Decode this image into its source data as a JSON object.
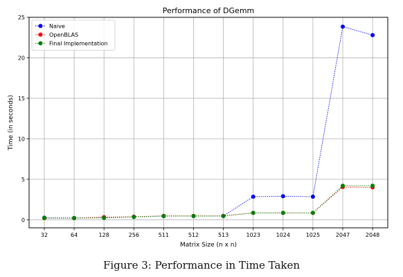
{
  "chart_data": {
    "type": "line",
    "title": "Performance of DGemm",
    "xlabel": "Matrix Size (n x n)",
    "ylabel": "Time (in seconds)",
    "categories": [
      "32",
      "64",
      "128",
      "256",
      "511",
      "512",
      "513",
      "1023",
      "1024",
      "1025",
      "2047",
      "2048"
    ],
    "ylim": [
      -1,
      25
    ],
    "yticks": [
      0,
      5,
      10,
      15,
      20,
      25
    ],
    "grid": true,
    "legend_position": "top-left",
    "series": [
      {
        "name": "Naive",
        "color": "#0000ff",
        "values": [
          0.25,
          0.22,
          0.3,
          0.35,
          0.45,
          0.45,
          0.45,
          2.85,
          2.9,
          2.85,
          23.85,
          22.8
        ]
      },
      {
        "name": "OpenBLAS",
        "color": "#ff0000",
        "values": [
          0.2,
          0.2,
          0.32,
          0.38,
          0.48,
          0.48,
          0.48,
          0.85,
          0.85,
          0.85,
          4.05,
          4.0
        ]
      },
      {
        "name": "Final Implementation",
        "color": "#008000",
        "values": [
          0.22,
          0.2,
          0.22,
          0.35,
          0.45,
          0.45,
          0.45,
          0.85,
          0.85,
          0.85,
          4.2,
          4.2
        ]
      }
    ]
  },
  "caption": "Figure 3: Performance in Time Taken"
}
